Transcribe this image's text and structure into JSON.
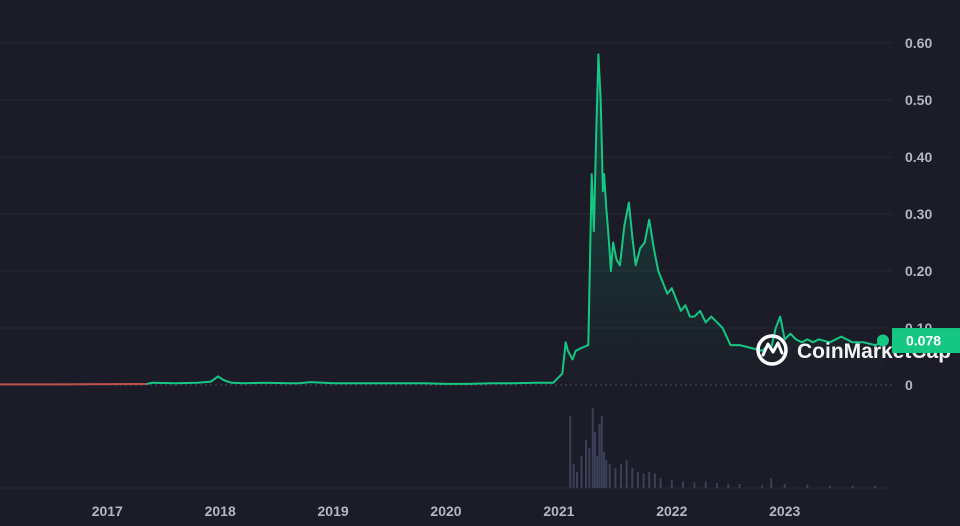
{
  "chart_data": {
    "type": "line",
    "title": "",
    "xlabel": "",
    "ylabel": "",
    "ylim": [
      0,
      0.6
    ],
    "y_ticks": [
      {
        "value": 0,
        "label": "0"
      },
      {
        "value": 0.1,
        "label": "0.10"
      },
      {
        "value": 0.2,
        "label": "0.20"
      },
      {
        "value": 0.3,
        "label": "0.30"
      },
      {
        "value": 0.4,
        "label": "0.40"
      },
      {
        "value": 0.5,
        "label": "0.50"
      },
      {
        "value": 0.6,
        "label": "0.60"
      }
    ],
    "x_ticks": [
      "2017",
      "2018",
      "2019",
      "2020",
      "2021",
      "2022",
      "2023"
    ],
    "x_range": [
      2016.05,
      2023.95
    ],
    "grid": true,
    "current_price_label": "0.078",
    "current_price": 0.078,
    "watermark": "CoinMarketCap",
    "colors": {
      "line": "#16c784",
      "early_line": "#c0504d",
      "background": "#1b1c27",
      "grid": "#272836",
      "price_tag": "#16c784",
      "volume": "#3b4058"
    },
    "series": [
      {
        "x": [
          2016.05,
          2016.5,
          2017.0,
          2017.35,
          2017.4,
          2017.6,
          2017.8,
          2017.92,
          2017.98,
          2018.02,
          2018.05,
          2018.1,
          2018.2,
          2018.4,
          2018.6,
          2018.7,
          2018.8,
          2019.0,
          2019.2,
          2019.4,
          2019.6,
          2019.8,
          2020.0,
          2020.2,
          2020.4,
          2020.6,
          2020.8,
          2020.95,
          2021.03,
          2021.06,
          2021.08,
          2021.12,
          2021.15,
          2021.2,
          2021.26,
          2021.29,
          2021.31,
          2021.33,
          2021.35,
          2021.37,
          2021.39,
          2021.4,
          2021.42,
          2021.44,
          2021.46,
          2021.48,
          2021.51,
          2021.54,
          2021.58,
          2021.62,
          2021.65,
          2021.68,
          2021.72,
          2021.76,
          2021.8,
          2021.84,
          2021.86,
          2021.88,
          2021.92,
          2021.96,
          2022.0,
          2022.04,
          2022.08,
          2022.12,
          2022.16,
          2022.2,
          2022.25,
          2022.3,
          2022.35,
          2022.4,
          2022.45,
          2022.52,
          2022.6,
          2022.7,
          2022.8,
          2022.85,
          2022.88,
          2022.92,
          2022.96,
          2023.0,
          2023.05,
          2023.1,
          2023.15,
          2023.2,
          2023.25,
          2023.3,
          2023.4,
          2023.5,
          2023.6,
          2023.7,
          2023.8,
          2023.87
        ],
        "values": [
          0.001,
          0.001,
          0.0015,
          0.0018,
          0.004,
          0.003,
          0.004,
          0.006,
          0.015,
          0.01,
          0.007,
          0.004,
          0.003,
          0.004,
          0.003,
          0.003,
          0.005,
          0.003,
          0.003,
          0.003,
          0.003,
          0.003,
          0.002,
          0.002,
          0.003,
          0.003,
          0.004,
          0.004,
          0.02,
          0.075,
          0.06,
          0.045,
          0.06,
          0.065,
          0.07,
          0.37,
          0.27,
          0.44,
          0.58,
          0.5,
          0.34,
          0.37,
          0.31,
          0.26,
          0.2,
          0.25,
          0.22,
          0.21,
          0.28,
          0.32,
          0.26,
          0.21,
          0.24,
          0.25,
          0.29,
          0.24,
          0.22,
          0.2,
          0.18,
          0.16,
          0.17,
          0.15,
          0.13,
          0.14,
          0.12,
          0.12,
          0.13,
          0.11,
          0.12,
          0.11,
          0.1,
          0.07,
          0.07,
          0.065,
          0.06,
          0.07,
          0.065,
          0.1,
          0.12,
          0.08,
          0.09,
          0.08,
          0.075,
          0.08,
          0.075,
          0.08,
          0.075,
          0.085,
          0.075,
          0.075,
          0.07,
          0.075
        ]
      }
    ],
    "volume": {
      "x": [
        2021.1,
        2021.13,
        2021.16,
        2021.2,
        2021.24,
        2021.27,
        2021.3,
        2021.32,
        2021.34,
        2021.36,
        2021.38,
        2021.4,
        2021.42,
        2021.45,
        2021.5,
        2021.55,
        2021.6,
        2021.65,
        2021.7,
        2021.75,
        2021.8,
        2021.85,
        2021.9,
        2022.0,
        2022.1,
        2022.2,
        2022.3,
        2022.4,
        2022.5,
        2022.6,
        2022.8,
        2022.88,
        2023.0,
        2023.2,
        2023.4,
        2023.6,
        2023.8
      ],
      "values": [
        0.9,
        0.3,
        0.2,
        0.4,
        0.6,
        0.5,
        1.0,
        0.7,
        0.4,
        0.8,
        0.9,
        0.45,
        0.35,
        0.3,
        0.25,
        0.3,
        0.35,
        0.25,
        0.2,
        0.18,
        0.2,
        0.18,
        0.12,
        0.1,
        0.08,
        0.07,
        0.08,
        0.06,
        0.05,
        0.05,
        0.04,
        0.12,
        0.05,
        0.04,
        0.03,
        0.03,
        0.03
      ]
    }
  }
}
